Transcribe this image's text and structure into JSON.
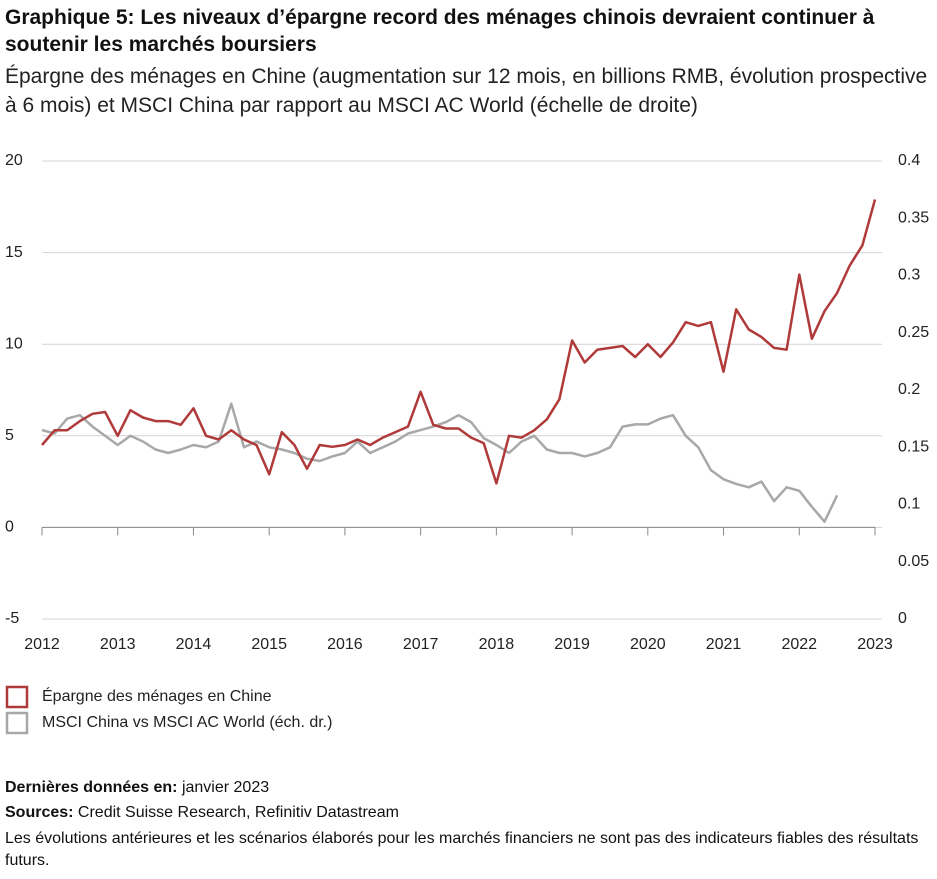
{
  "chart_data": {
    "type": "line",
    "title": "Graphique 5: Les niveaux d’épargne record des ménages chinois devraient continuer à soutenir les marchés boursiers",
    "subtitle": "Épargne des ménages en Chine (augmentation sur 12 mois, en billions RMB, évolution prospective à 6 mois) et MSCI China par rapport au MSCI AC World (échelle de droite)",
    "x": [
      2012.0,
      2012.167,
      2012.333,
      2012.5,
      2012.667,
      2012.833,
      2013.0,
      2013.167,
      2013.333,
      2013.5,
      2013.667,
      2013.833,
      2014.0,
      2014.167,
      2014.333,
      2014.5,
      2014.667,
      2014.833,
      2015.0,
      2015.167,
      2015.333,
      2015.5,
      2015.667,
      2015.833,
      2016.0,
      2016.167,
      2016.333,
      2016.5,
      2016.667,
      2016.833,
      2017.0,
      2017.167,
      2017.333,
      2017.5,
      2017.667,
      2017.833,
      2018.0,
      2018.167,
      2018.333,
      2018.5,
      2018.667,
      2018.833,
      2019.0,
      2019.167,
      2019.333,
      2019.5,
      2019.667,
      2019.833,
      2020.0,
      2020.167,
      2020.333,
      2020.5,
      2020.667,
      2020.833,
      2021.0,
      2021.167,
      2021.333,
      2021.5,
      2021.667,
      2021.833,
      2022.0,
      2022.167,
      2022.333,
      2022.5,
      2022.667,
      2022.833,
      2023.0
    ],
    "series": [
      {
        "name": "Épargne des ménages en Chine",
        "color": "#b03a3a",
        "axis": "y",
        "values": [
          4.5,
          5.3,
          5.3,
          5.8,
          6.2,
          6.3,
          5.0,
          6.4,
          6.0,
          5.8,
          5.8,
          5.6,
          6.5,
          5.0,
          4.8,
          5.3,
          4.8,
          4.5,
          2.9,
          5.2,
          4.5,
          3.2,
          4.5,
          4.4,
          4.5,
          4.8,
          4.5,
          4.9,
          5.2,
          5.5,
          7.4,
          5.6,
          5.4,
          5.4,
          4.9,
          4.6,
          2.4,
          5.0,
          4.9,
          5.3,
          5.9,
          7.0,
          10.2,
          9.0,
          9.7,
          9.8,
          9.9,
          9.3,
          10.0,
          9.3,
          10.1,
          11.2,
          11.0,
          11.2,
          8.5,
          11.9,
          10.8,
          10.4,
          9.8,
          9.7,
          13.8,
          10.3,
          11.8,
          12.8,
          14.3,
          15.4,
          17.9
        ]
      },
      {
        "name": "MSCI China vs MSCI AC World (éch. dr.)",
        "color": "#a8a8a8",
        "axis": "y2",
        "values": [
          0.165,
          0.162,
          0.175,
          0.178,
          0.168,
          0.16,
          0.152,
          0.16,
          0.155,
          0.148,
          0.145,
          0.148,
          0.152,
          0.15,
          0.155,
          0.188,
          0.15,
          0.155,
          0.15,
          0.148,
          0.145,
          0.14,
          0.138,
          0.142,
          0.145,
          0.155,
          0.145,
          0.15,
          0.155,
          0.162,
          0.165,
          0.168,
          0.172,
          0.178,
          0.172,
          0.158,
          0.152,
          0.145,
          0.155,
          0.16,
          0.148,
          0.145,
          0.145,
          0.142,
          0.145,
          0.15,
          0.168,
          0.17,
          0.17,
          0.175,
          0.178,
          0.16,
          0.15,
          0.13,
          0.122,
          0.118,
          0.115,
          0.12,
          0.103,
          0.115,
          0.112,
          0.098,
          0.085,
          0.108,
          null,
          null,
          null
        ]
      }
    ],
    "xlim": [
      2012,
      2023
    ],
    "xticks": [
      2012,
      2013,
      2014,
      2015,
      2016,
      2017,
      2018,
      2019,
      2020,
      2021,
      2022,
      2023
    ],
    "ylim": [
      -5,
      20
    ],
    "yticks": [
      -5,
      0,
      5,
      10,
      15,
      20
    ],
    "y2lim": [
      0,
      0.4
    ],
    "y2ticks": [
      0,
      0.05,
      0.1,
      0.15,
      0.2,
      0.25,
      0.3,
      0.35,
      0.4
    ],
    "grid": true,
    "legend": "bottom-left",
    "footer": {
      "latest_label": "Dernières données en:",
      "latest_value": "janvier 2023",
      "sources_label": "Sources:",
      "sources_value": "Credit Suisse Research, Refinitiv Datastream",
      "disclaimer": "Les évolutions antérieures et les scénarios élaborés pour les marchés financiers ne sont pas des indicateurs fiables des résultats futurs."
    }
  }
}
